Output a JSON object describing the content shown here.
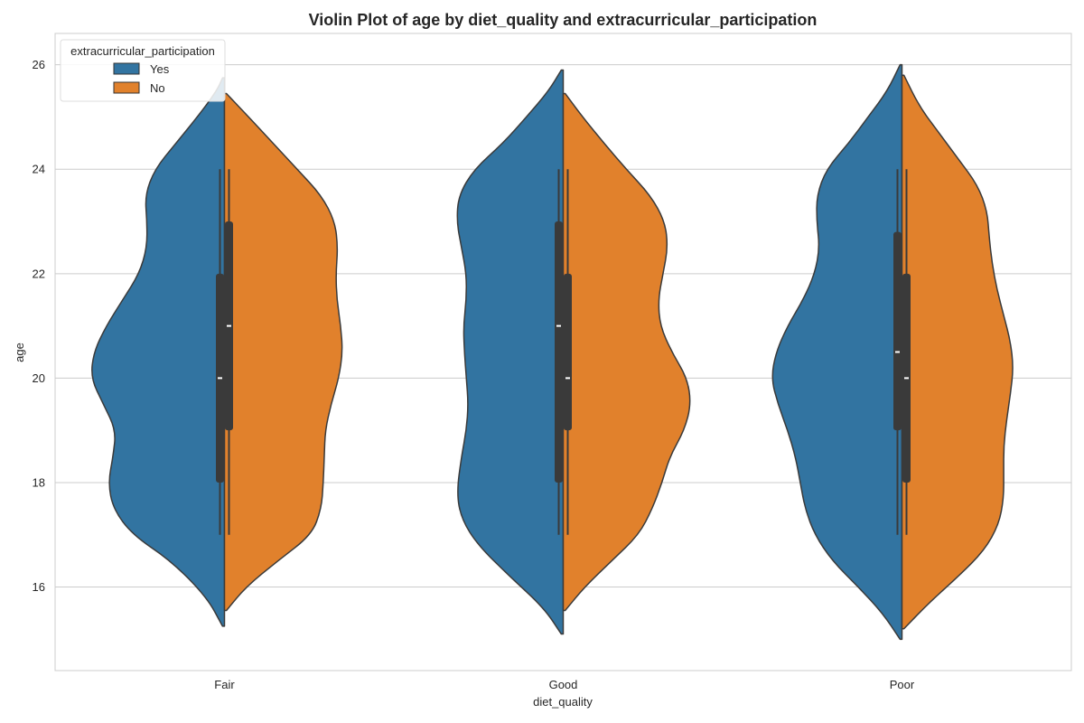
{
  "chart_data": {
    "type": "violin",
    "title": "Violin Plot of age by diet_quality and extracurricular_participation",
    "xlabel": "diet_quality",
    "ylabel": "age",
    "categories": [
      "Fair",
      "Good",
      "Poor"
    ],
    "ylim": [
      14.4,
      26.6
    ],
    "yticks": [
      16,
      18,
      20,
      22,
      24,
      26
    ],
    "grid": true,
    "split": true,
    "legend": {
      "title": "extracurricular_participation",
      "placement": "top-left",
      "entries": [
        {
          "label": "Yes",
          "color": "#3274a1"
        },
        {
          "label": "No",
          "color": "#e1812c"
        }
      ]
    },
    "series": [
      {
        "name": "Yes",
        "color": "#3274a1",
        "groups": [
          {
            "category": "Fair",
            "ymin": 15.25,
            "ymax": 25.75,
            "density": [
              [
                15.25,
                0.02
              ],
              [
                15.8,
                0.18
              ],
              [
                16.5,
                0.55
              ],
              [
                17.0,
                0.95
              ],
              [
                17.5,
                1.15
              ],
              [
                18.0,
                1.2
              ],
              [
                18.5,
                1.15
              ],
              [
                19.0,
                1.12
              ],
              [
                19.5,
                1.25
              ],
              [
                20.0,
                1.38
              ],
              [
                20.5,
                1.35
              ],
              [
                21.0,
                1.22
              ],
              [
                21.5,
                1.05
              ],
              [
                22.0,
                0.88
              ],
              [
                22.5,
                0.8
              ],
              [
                23.0,
                0.8
              ],
              [
                23.5,
                0.82
              ],
              [
                24.0,
                0.72
              ],
              [
                24.5,
                0.5
              ],
              [
                25.0,
                0.28
              ],
              [
                25.5,
                0.08
              ],
              [
                25.75,
                0.02
              ]
            ],
            "q1": 18,
            "median": 20,
            "q3": 22,
            "whisker_low": 17,
            "whisker_high": 24
          },
          {
            "category": "Good",
            "ymin": 15.1,
            "ymax": 25.9,
            "density": [
              [
                15.1,
                0.02
              ],
              [
                15.6,
                0.2
              ],
              [
                16.2,
                0.55
              ],
              [
                16.8,
                0.88
              ],
              [
                17.3,
                1.05
              ],
              [
                17.8,
                1.1
              ],
              [
                18.5,
                1.05
              ],
              [
                19.0,
                1.0
              ],
              [
                19.5,
                0.98
              ],
              [
                20.0,
                1.0
              ],
              [
                20.5,
                1.02
              ],
              [
                21.0,
                1.03
              ],
              [
                21.5,
                1.0
              ],
              [
                22.0,
                1.0
              ],
              [
                22.5,
                1.05
              ],
              [
                23.0,
                1.1
              ],
              [
                23.5,
                1.08
              ],
              [
                24.0,
                0.92
              ],
              [
                24.5,
                0.62
              ],
              [
                25.0,
                0.38
              ],
              [
                25.5,
                0.15
              ],
              [
                25.9,
                0.02
              ]
            ],
            "q1": 18,
            "median": 21,
            "q3": 23,
            "whisker_low": 17,
            "whisker_high": 24
          },
          {
            "category": "Poor",
            "ymin": 15.0,
            "ymax": 26.0,
            "density": [
              [
                15.0,
                0.02
              ],
              [
                15.5,
                0.2
              ],
              [
                16.0,
                0.45
              ],
              [
                16.5,
                0.72
              ],
              [
                17.0,
                0.9
              ],
              [
                17.5,
                1.0
              ],
              [
                18.0,
                1.05
              ],
              [
                18.5,
                1.1
              ],
              [
                19.0,
                1.18
              ],
              [
                19.5,
                1.28
              ],
              [
                20.0,
                1.35
              ],
              [
                20.5,
                1.3
              ],
              [
                21.0,
                1.18
              ],
              [
                21.5,
                1.02
              ],
              [
                22.0,
                0.9
              ],
              [
                22.5,
                0.85
              ],
              [
                23.0,
                0.88
              ],
              [
                23.5,
                0.88
              ],
              [
                24.0,
                0.78
              ],
              [
                24.5,
                0.55
              ],
              [
                25.0,
                0.35
              ],
              [
                25.5,
                0.15
              ],
              [
                26.0,
                0.02
              ]
            ],
            "q1": 19,
            "median": 20.5,
            "q3": 22.8,
            "whisker_low": 17,
            "whisker_high": 24
          }
        ]
      },
      {
        "name": "No",
        "color": "#e1812c",
        "groups": [
          {
            "category": "Fair",
            "ymin": 15.55,
            "ymax": 25.45,
            "density": [
              [
                15.55,
                0.02
              ],
              [
                16.0,
                0.22
              ],
              [
                16.5,
                0.55
              ],
              [
                17.0,
                0.9
              ],
              [
                17.5,
                1.0
              ],
              [
                18.0,
                1.02
              ],
              [
                18.5,
                1.03
              ],
              [
                19.0,
                1.04
              ],
              [
                19.5,
                1.1
              ],
              [
                20.0,
                1.18
              ],
              [
                20.5,
                1.22
              ],
              [
                21.0,
                1.2
              ],
              [
                21.5,
                1.16
              ],
              [
                22.0,
                1.15
              ],
              [
                22.5,
                1.17
              ],
              [
                23.0,
                1.14
              ],
              [
                23.5,
                1.0
              ],
              [
                24.0,
                0.75
              ],
              [
                24.5,
                0.5
              ],
              [
                25.0,
                0.25
              ],
              [
                25.45,
                0.02
              ]
            ],
            "q1": 19,
            "median": 21,
            "q3": 23,
            "whisker_low": 17,
            "whisker_high": 24
          },
          {
            "category": "Good",
            "ymin": 15.55,
            "ymax": 25.45,
            "density": [
              [
                15.55,
                0.02
              ],
              [
                16.0,
                0.22
              ],
              [
                16.5,
                0.5
              ],
              [
                17.0,
                0.78
              ],
              [
                17.5,
                0.92
              ],
              [
                18.0,
                1.02
              ],
              [
                18.5,
                1.1
              ],
              [
                19.0,
                1.25
              ],
              [
                19.5,
                1.32
              ],
              [
                20.0,
                1.28
              ],
              [
                20.5,
                1.12
              ],
              [
                21.0,
                1.0
              ],
              [
                21.5,
                0.98
              ],
              [
                22.0,
                1.03
              ],
              [
                22.5,
                1.08
              ],
              [
                23.0,
                1.05
              ],
              [
                23.5,
                0.9
              ],
              [
                24.0,
                0.65
              ],
              [
                24.5,
                0.42
              ],
              [
                25.0,
                0.2
              ],
              [
                25.45,
                0.02
              ]
            ],
            "q1": 19,
            "median": 20,
            "q3": 22,
            "whisker_low": 17,
            "whisker_high": 24
          },
          {
            "category": "Poor",
            "ymin": 15.2,
            "ymax": 25.8,
            "density": [
              [
                15.2,
                0.02
              ],
              [
                15.7,
                0.28
              ],
              [
                16.2,
                0.58
              ],
              [
                16.7,
                0.85
              ],
              [
                17.2,
                1.0
              ],
              [
                17.7,
                1.05
              ],
              [
                18.2,
                1.05
              ],
              [
                18.7,
                1.05
              ],
              [
                19.2,
                1.08
              ],
              [
                19.7,
                1.12
              ],
              [
                20.2,
                1.15
              ],
              [
                20.7,
                1.12
              ],
              [
                21.2,
                1.05
              ],
              [
                21.7,
                0.98
              ],
              [
                22.2,
                0.93
              ],
              [
                22.7,
                0.9
              ],
              [
                23.2,
                0.88
              ],
              [
                23.7,
                0.78
              ],
              [
                24.2,
                0.58
              ],
              [
                24.7,
                0.38
              ],
              [
                25.2,
                0.18
              ],
              [
                25.8,
                0.02
              ]
            ],
            "q1": 18,
            "median": 20,
            "q3": 22,
            "whisker_low": 17,
            "whisker_high": 24
          }
        ]
      }
    ]
  }
}
